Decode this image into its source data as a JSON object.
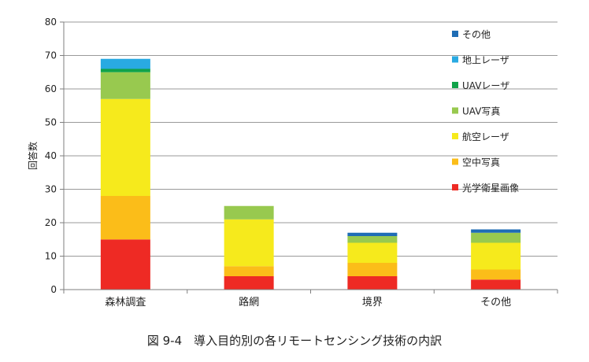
{
  "chart_data": {
    "type": "bar",
    "stacked": true,
    "categories": [
      "森林調査",
      "路網",
      "境界",
      "その他"
    ],
    "series": [
      {
        "name": "光学衛星画像",
        "color": "#ee2a24",
        "values": [
          15,
          4,
          4,
          3
        ]
      },
      {
        "name": "空中写真",
        "color": "#fbbd19",
        "values": [
          13,
          3,
          4,
          3
        ]
      },
      {
        "name": "航空レーザ",
        "color": "#f6ea1c",
        "values": [
          29,
          14,
          6,
          8
        ]
      },
      {
        "name": "UAV写真",
        "color": "#98c94f",
        "values": [
          8,
          4,
          2,
          3
        ]
      },
      {
        "name": "UAVレーザ",
        "color": "#10a34a",
        "values": [
          1,
          0,
          0,
          0
        ]
      },
      {
        "name": "地上レーザ",
        "color": "#29aae2",
        "values": [
          3,
          0,
          0,
          0
        ]
      },
      {
        "name": "その他",
        "color": "#1f6db5",
        "values": [
          0,
          0,
          1,
          1
        ]
      }
    ],
    "ylabel": "回答数",
    "xlabel": "",
    "ylim": [
      0,
      80
    ],
    "yticks": [
      0,
      10,
      20,
      30,
      40,
      50,
      60,
      70,
      80
    ],
    "grid": true,
    "legend_position": "top-right"
  },
  "caption": "図 9-4　導入目的別の各リモートセンシング技術の内訳"
}
